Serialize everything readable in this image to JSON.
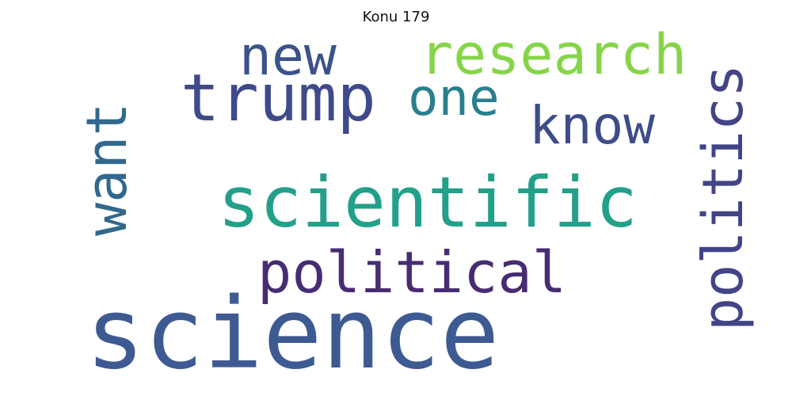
{
  "title": "Konu 179",
  "words": [
    {
      "text": "science",
      "color": "#3e5a92"
    },
    {
      "text": "scientific",
      "color": "#23a08a"
    },
    {
      "text": "political",
      "color": "#472c73"
    },
    {
      "text": "trump",
      "color": "#3f4a8a"
    },
    {
      "text": "research",
      "color": "#86d549"
    },
    {
      "text": "politics",
      "color": "#414487"
    },
    {
      "text": "new",
      "color": "#3b528b"
    },
    {
      "text": "one",
      "color": "#2a7f8e"
    },
    {
      "text": "know",
      "color": "#3e4c8a"
    },
    {
      "text": "want",
      "color": "#31688e"
    }
  ]
}
